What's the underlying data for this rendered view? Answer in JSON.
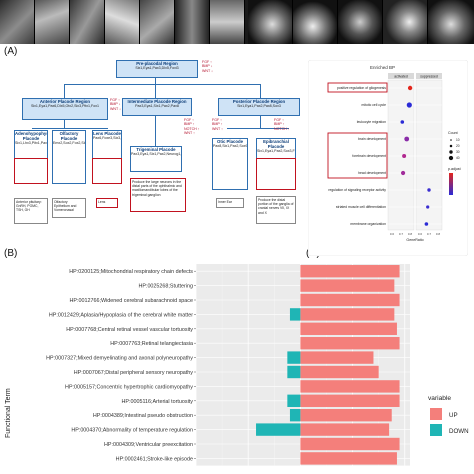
{
  "labels": {
    "a": "(A)",
    "b": "(B)",
    "c": "(C)"
  },
  "diagram": {
    "pre_placodal": {
      "title": "Pre-placodal Region",
      "genes": "Six1,Eya1,Pax3,Dlx5,Foxi3"
    },
    "anterior": {
      "title": "Anterior Placode Region",
      "genes": "Six1,Eya1,Pax6,Dlx5,Otx2,Six3,Pitx1,Fox1"
    },
    "intermediate": {
      "title": "Intermediate Placode Region",
      "genes": "Pax3,Eya1,Six1,Pax2,Pax8"
    },
    "posterior": {
      "title": "Posterior Placode Region",
      "genes": "Six1,Eya1,Pax2,Pax8,Sox3"
    },
    "adeno": {
      "title": "Adenohypophyseal Placode",
      "genes": "Six1,Lhx3,Pitx1,Pax6,Hesx1,Lhx4,Prop1,Tbx2"
    },
    "olfactory": {
      "title": "Olfactory Placode",
      "genes": "Emx2,Sox2,Fox2,Six1,Pax6,Ebf3,Lhx2"
    },
    "lens": {
      "title": "Lens Placode",
      "genes": "Pax6,Foxe3,Six3,Sox1,Mafb"
    },
    "trigeminal": {
      "title": "Trigeminal Placode",
      "genes": "Pax3,Eya1,Six1,Pax2,Neurog1,Isl1,Brn3a"
    },
    "otic": {
      "title": "Otic Placode",
      "genes": "Pax8,Six1,Pax2,Sox9,Sox10,Foxg1,Gata3,Neurog1"
    },
    "epibranchial": {
      "title": "Epibranchial Placode",
      "genes": "Six1,Eya1,Pax2,Sox3,Foxi3,Neurog2,Phox2a,Phox2b,Tbx2"
    },
    "signals": {
      "s1": [
        "FGF ↑",
        "BMP ↓",
        "WNT ↓"
      ],
      "s2": [
        "FGF ↑",
        "BMP ↓",
        "WNT ↓"
      ],
      "s3": [
        "FGF ↑",
        "BMP ↑",
        "WNT ↑"
      ],
      "s4": [
        "FGF ↑",
        "BMP ↑",
        "NOTCH ↑",
        "WNT ↑"
      ],
      "s5": [
        "FGF ↑",
        "BMP ↑",
        "NOTCH ↑",
        "WNT ↑"
      ]
    },
    "notes": {
      "adeno": "Anterior pituitary: GnRH, POMC, TSH, GH",
      "olfactory": "Olfactory Epithelium and Vomeronasal",
      "lens": "Lens",
      "trigeminal": "Produce the large neurons in the distal parts of the ophthalmic and maxillomandibular lobes of the trigeminal ganglion",
      "otic": "Inner Ear",
      "epibranchial": "Produce the distal portion of the ganglia of cranial nerves VII, IX and X"
    }
  },
  "dotplot": {
    "panel_title": "Enriched BP",
    "facets": [
      "activated",
      "suppressed"
    ],
    "terms": [
      "positive regulation of gliogenesis",
      "mitotic cell cycle",
      "leukocyte migration",
      "brain development",
      "forebrain development",
      "head development",
      "regulation of signaling receptor activity",
      "striated muscle cell differentiation",
      "membrane organization"
    ],
    "highlighted_terms": [
      "positive regulation of gliogenesis",
      "brain development",
      "forebrain development",
      "head development"
    ],
    "x_ticks": [
      "0.6",
      "0.7",
      "0.8",
      "0.6",
      "0.7",
      "0.8"
    ],
    "xlabel": "GeneRatio",
    "count_legend_title": "Count",
    "count_legend": [
      "10",
      "20",
      "30",
      "40"
    ],
    "padj_legend_title": "p.adjust",
    "colors": {
      "low": "#e3261c",
      "high": "#2b2bd6"
    }
  },
  "chart_data": {
    "type": "bar",
    "orientation": "horizontal",
    "ylabel": "Functional Term",
    "legend_title": "variable",
    "series": [
      {
        "name": "UP",
        "color": "#f47f7b"
      },
      {
        "name": "DOWN",
        "color": "#1fb5b5"
      }
    ],
    "xlim": [
      -4,
      4.2
    ],
    "categories": [
      "HP:0200125;Mitochondrial respiratory chain defects",
      "HP:0025268;Stuttering",
      "HP:0012766;Widened cerebral subarachnoid space",
      "HP:0012429;Aplasia/Hypoplasia of the cerebral white matter",
      "HP:0007768;Central retinal vessel vascular tortuosity",
      "HP:0007763;Retinal telangiectasia",
      "HP:0007327;Mixed demyelinating and axonal polyneuropathy",
      "HP:0007067;Distal peripheral sensory neuropathy",
      "HP:0005157;Concentric hypertrophic cardiomyopathy",
      "HP:0005116;Arterial tortuosity",
      "HP:0004389;Intestinal pseudo obstruction",
      "HP:0004370;Abnormality of temperature regulation",
      "HP:0004309;Ventricular preexcitation",
      "HP:0002461;Stroke-like episode"
    ],
    "up": [
      3.8,
      3.6,
      3.8,
      3.6,
      3.7,
      3.8,
      2.8,
      3.0,
      3.8,
      3.8,
      3.5,
      3.4,
      3.8,
      3.7
    ],
    "down": [
      0,
      0,
      0,
      -0.4,
      0,
      0,
      -0.5,
      -0.5,
      0,
      -0.5,
      -0.4,
      -1.7,
      0,
      0
    ]
  }
}
